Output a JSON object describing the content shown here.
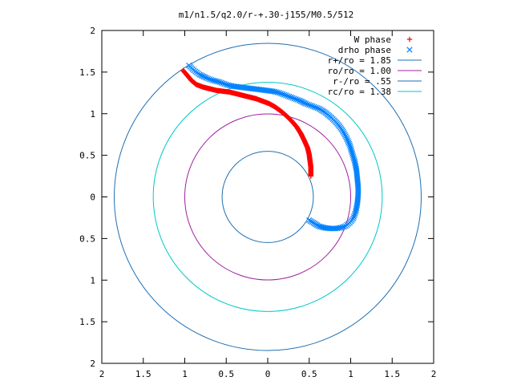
{
  "chart_data": {
    "type": "scatter",
    "title": "m1/n1.5/q2.0/r-+.30-j155/M0.5/512",
    "xlabel": "",
    "ylabel": "",
    "xlim": [
      -2,
      2
    ],
    "ylim": [
      -2,
      2
    ],
    "x_tick_values": [
      -2,
      -1.5,
      -1,
      -0.5,
      0,
      0.5,
      1,
      1.5,
      2
    ],
    "x_tick_labels": [
      "2",
      "1.5",
      "1",
      "0.5",
      "0",
      "0.5",
      "1",
      "1.5",
      "2"
    ],
    "y_tick_values": [
      2,
      1.5,
      1,
      0.5,
      0,
      -0.5,
      -1,
      -1.5,
      -2
    ],
    "y_tick_labels": [
      "2",
      "1.5",
      "1",
      "0.5",
      "0",
      "0.5",
      "1",
      "1.5",
      "2"
    ],
    "grid": false,
    "legend_position": "top-right",
    "series": [
      {
        "name": "W phase",
        "kind": "points",
        "marker": "plus",
        "color": "#ff0000",
        "points": [
          [
            -1.02,
            1.52
          ],
          [
            -0.97,
            1.46
          ],
          [
            -0.92,
            1.4
          ],
          [
            -0.86,
            1.35
          ],
          [
            -0.78,
            1.32
          ],
          [
            -0.7,
            1.3
          ],
          [
            -0.62,
            1.28
          ],
          [
            -0.54,
            1.27
          ],
          [
            -0.46,
            1.26
          ],
          [
            -0.38,
            1.24
          ],
          [
            -0.3,
            1.22
          ],
          [
            -0.22,
            1.2
          ],
          [
            -0.14,
            1.18
          ],
          [
            -0.06,
            1.15
          ],
          [
            0.02,
            1.12
          ],
          [
            0.09,
            1.08
          ],
          [
            0.16,
            1.03
          ],
          [
            0.23,
            0.97
          ],
          [
            0.29,
            0.91
          ],
          [
            0.35,
            0.84
          ],
          [
            0.4,
            0.76
          ],
          [
            0.44,
            0.68
          ],
          [
            0.48,
            0.59
          ],
          [
            0.5,
            0.51
          ],
          [
            0.51,
            0.43
          ],
          [
            0.52,
            0.36
          ],
          [
            0.52,
            0.3
          ],
          [
            0.52,
            0.25
          ]
        ]
      },
      {
        "name": "drho phase",
        "kind": "points",
        "marker": "cross",
        "color": "#0080ff",
        "points": [
          [
            -0.95,
            1.58
          ],
          [
            -0.89,
            1.52
          ],
          [
            -0.82,
            1.47
          ],
          [
            -0.74,
            1.43
          ],
          [
            -0.66,
            1.4
          ],
          [
            -0.58,
            1.38
          ],
          [
            -0.5,
            1.35
          ],
          [
            -0.42,
            1.33
          ],
          [
            -0.34,
            1.32
          ],
          [
            -0.26,
            1.31
          ],
          [
            -0.18,
            1.3
          ],
          [
            -0.1,
            1.29
          ],
          [
            -0.02,
            1.28
          ],
          [
            0.06,
            1.27
          ],
          [
            0.14,
            1.25
          ],
          [
            0.22,
            1.22
          ],
          [
            0.3,
            1.19
          ],
          [
            0.38,
            1.16
          ],
          [
            0.46,
            1.12
          ],
          [
            0.54,
            1.09
          ],
          [
            0.62,
            1.06
          ],
          [
            0.7,
            1.01
          ],
          [
            0.77,
            0.95
          ],
          [
            0.84,
            0.88
          ],
          [
            0.9,
            0.8
          ],
          [
            0.95,
            0.71
          ],
          [
            0.99,
            0.62
          ],
          [
            1.02,
            0.52
          ],
          [
            1.05,
            0.42
          ],
          [
            1.07,
            0.32
          ],
          [
            1.08,
            0.22
          ],
          [
            1.09,
            0.12
          ],
          [
            1.09,
            0.02
          ],
          [
            1.08,
            -0.08
          ],
          [
            1.06,
            -0.18
          ],
          [
            1.03,
            -0.26
          ],
          [
            0.99,
            -0.31
          ],
          [
            0.94,
            -0.35
          ],
          [
            0.88,
            -0.37
          ],
          [
            0.82,
            -0.38
          ],
          [
            0.75,
            -0.38
          ],
          [
            0.68,
            -0.37
          ],
          [
            0.61,
            -0.35
          ],
          [
            0.55,
            -0.31
          ],
          [
            0.5,
            -0.28
          ]
        ]
      },
      {
        "name": "r+/ro = 1.85",
        "kind": "circle",
        "radius": 1.85,
        "color": "#1f6fb2"
      },
      {
        "name": "ro/ro = 1.00",
        "kind": "circle",
        "radius": 1.0,
        "color": "#a020a0"
      },
      {
        "name": "r-/ro = .55",
        "kind": "circle",
        "radius": 0.55,
        "color": "#1f6fb2"
      },
      {
        "name": "rc/ro = 1.38",
        "kind": "circle",
        "radius": 1.38,
        "color": "#00c8c8"
      }
    ]
  }
}
